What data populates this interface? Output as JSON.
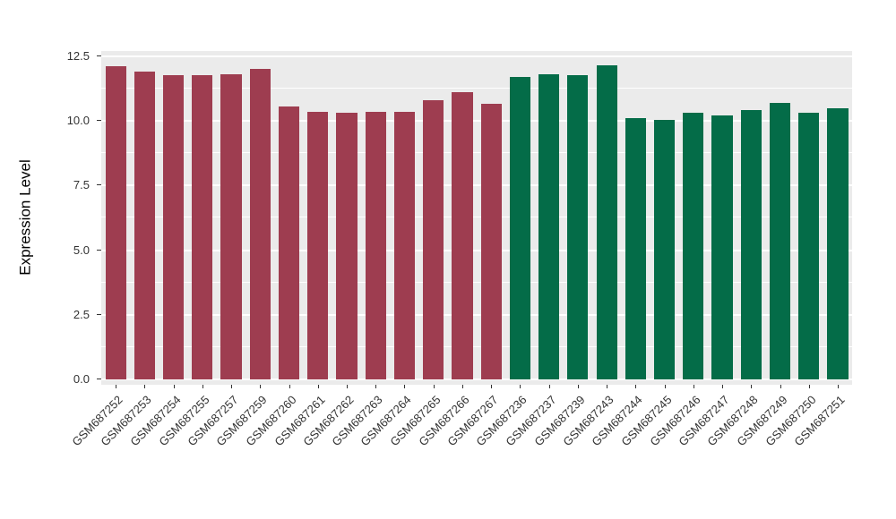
{
  "chart_data": {
    "type": "bar",
    "title": "",
    "xlabel": "",
    "ylabel": "Expression Level",
    "ylim": [
      0,
      12.5
    ],
    "grid": "on",
    "legend_position": "none",
    "panel_bg": "#EBEBEB",
    "grid_color": "#FFFFFF",
    "ytick_values": [
      0,
      2.5,
      5,
      7.5,
      10,
      12.5
    ],
    "ytick_labels": [
      "0.0",
      "2.5",
      "5.0",
      "7.5",
      "10.0",
      "12.5"
    ],
    "minor_tick_values": [
      1.25,
      3.75,
      6.25,
      8.75,
      11.25
    ],
    "categories": [
      "GSM687252",
      "GSM687253",
      "GSM687254",
      "GSM687255",
      "GSM687257",
      "GSM687259",
      "GSM687260",
      "GSM687261",
      "GSM687262",
      "GSM687263",
      "GSM687264",
      "GSM687265",
      "GSM687266",
      "GSM687267",
      "GSM687236",
      "GSM687237",
      "GSM687239",
      "GSM687243",
      "GSM687244",
      "GSM687245",
      "GSM687246",
      "GSM687247",
      "GSM687248",
      "GSM687249",
      "GSM687250",
      "GSM687251"
    ],
    "values": [
      12.1,
      11.9,
      11.75,
      11.75,
      11.8,
      12.0,
      10.55,
      10.35,
      10.3,
      10.35,
      10.35,
      10.8,
      11.1,
      10.65,
      11.7,
      11.8,
      11.75,
      12.15,
      10.1,
      10.05,
      10.3,
      10.2,
      10.4,
      10.7,
      10.3,
      10.5
    ],
    "groups": [
      "red",
      "red",
      "red",
      "red",
      "red",
      "red",
      "red",
      "red",
      "red",
      "red",
      "red",
      "red",
      "red",
      "red",
      "green",
      "green",
      "green",
      "green",
      "green",
      "green",
      "green",
      "green",
      "green",
      "green",
      "green",
      "green"
    ],
    "colors": {
      "red": "#9E3D50",
      "green": "#046C48"
    }
  }
}
